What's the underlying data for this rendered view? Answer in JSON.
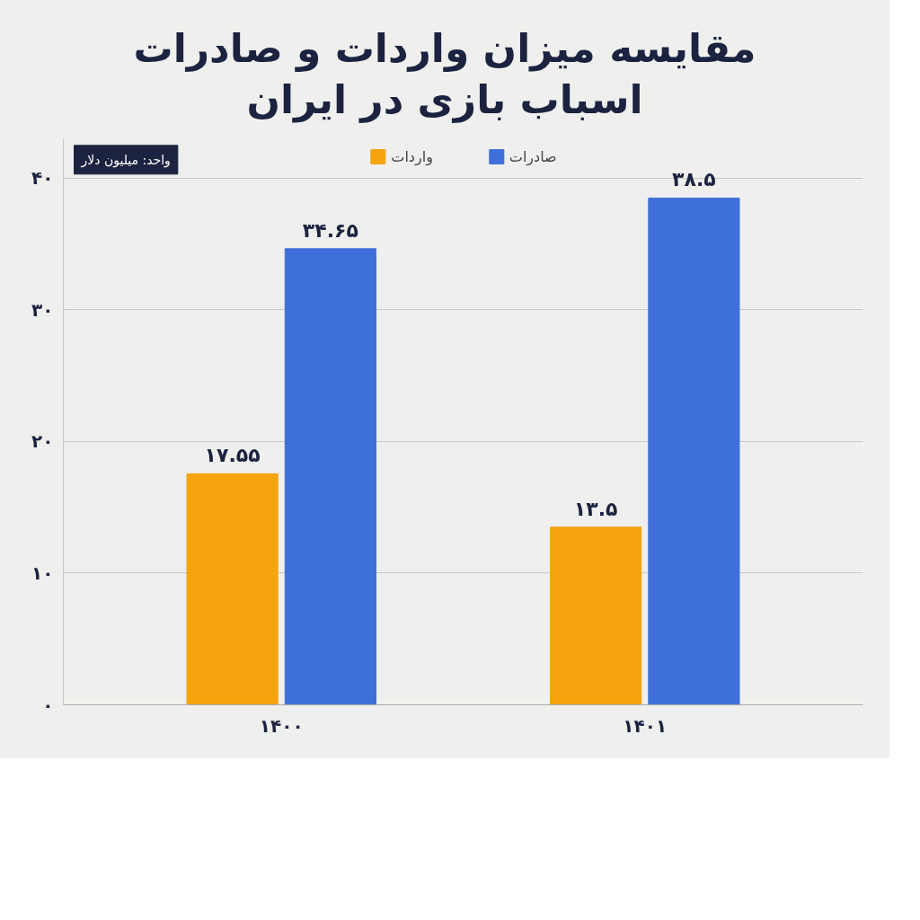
{
  "chart_data": {
    "type": "bar",
    "title": "مقایسه میزان واردات و صادرات\nاسباب بازی در ایران",
    "categories": [
      "۱۴۰۰",
      "۱۴۰۱"
    ],
    "series": [
      {
        "name": "واردات",
        "color": "#f5a30f",
        "values": [
          17.55,
          13.5
        ],
        "value_labels": [
          "۱۷.۵۵",
          "۱۳.۵"
        ]
      },
      {
        "name": "صادرات",
        "color": "#3f6fd9",
        "values": [
          34.65,
          38.5
        ],
        "value_labels": [
          "۳۴.۶۵",
          "۳۸.۵"
        ]
      }
    ],
    "ylim": [
      0,
      43
    ],
    "yticks": [
      {
        "value": 0,
        "label": "۰"
      },
      {
        "value": 10,
        "label": "۱۰"
      },
      {
        "value": 20,
        "label": "۲۰"
      },
      {
        "value": 30,
        "label": "۳۰"
      },
      {
        "value": 40,
        "label": "۴۰"
      }
    ],
    "grid": "y",
    "legend": "top",
    "annotations": [
      "واحد: میلیون دلار"
    ]
  }
}
